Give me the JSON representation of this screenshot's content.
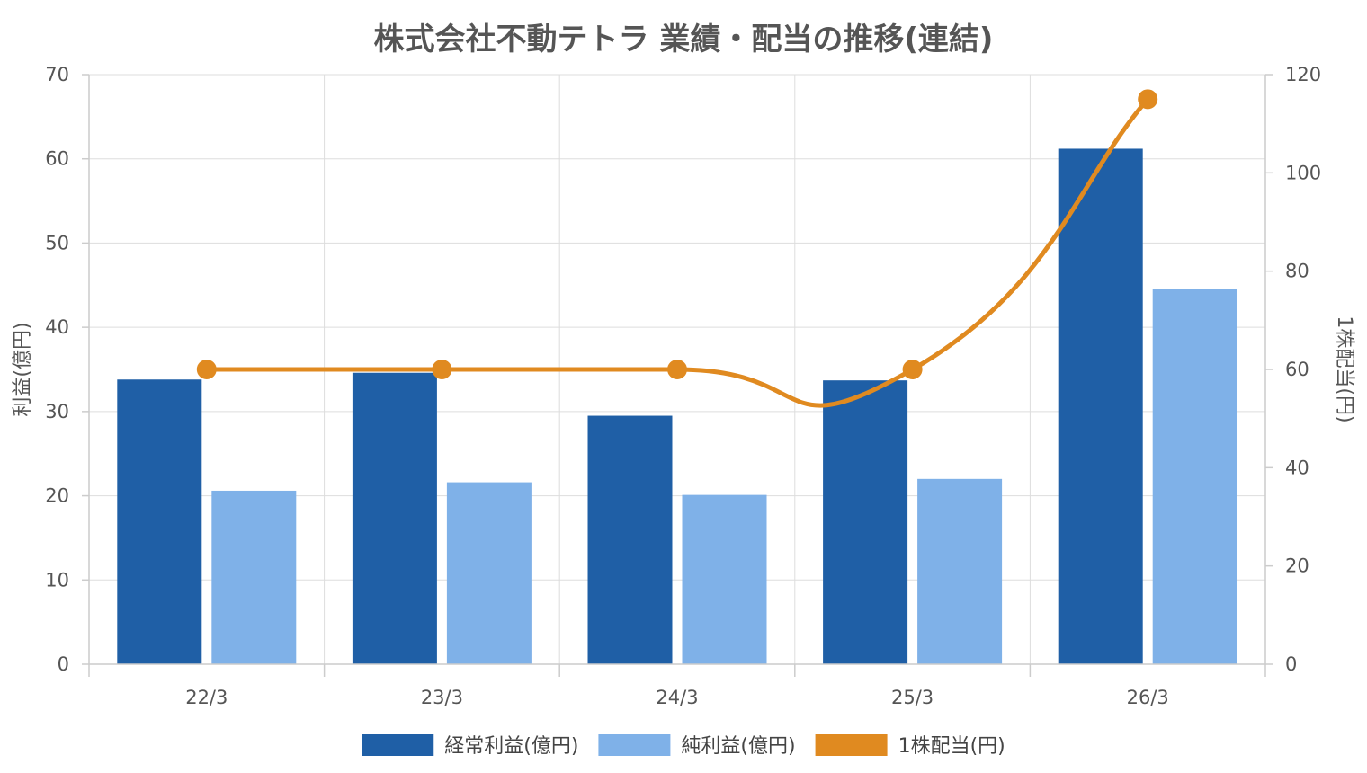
{
  "chart_data": {
    "type": "bar",
    "title": "株式会社不動テトラ 業績・配当の推移(連結)",
    "categories": [
      "22/3",
      "23/3",
      "24/3",
      "25/3",
      "26/3"
    ],
    "series": [
      {
        "name": "経常利益(億円)",
        "type": "bar",
        "axis": "left",
        "color": "#1f5fa6",
        "values": [
          33.8,
          34.6,
          29.5,
          33.7,
          61.2
        ]
      },
      {
        "name": "純利益(億円)",
        "type": "bar",
        "axis": "left",
        "color": "#7fb1e8",
        "values": [
          20.6,
          21.6,
          20.1,
          22.0,
          44.6
        ]
      },
      {
        "name": "1株配当(円)",
        "type": "line",
        "axis": "right",
        "color": "#e08a20",
        "values": [
          60,
          60,
          60,
          60,
          115
        ]
      }
    ],
    "y_left": {
      "label": "利益(億円)",
      "min": 0,
      "max": 70,
      "ticks": [
        0,
        10,
        20,
        30,
        40,
        50,
        60,
        70
      ]
    },
    "y_right": {
      "label": "1株配当(円)",
      "min": 0,
      "max": 120,
      "ticks": [
        0,
        20,
        40,
        60,
        80,
        100,
        120
      ]
    },
    "grid": true,
    "legend_position": "bottom"
  }
}
